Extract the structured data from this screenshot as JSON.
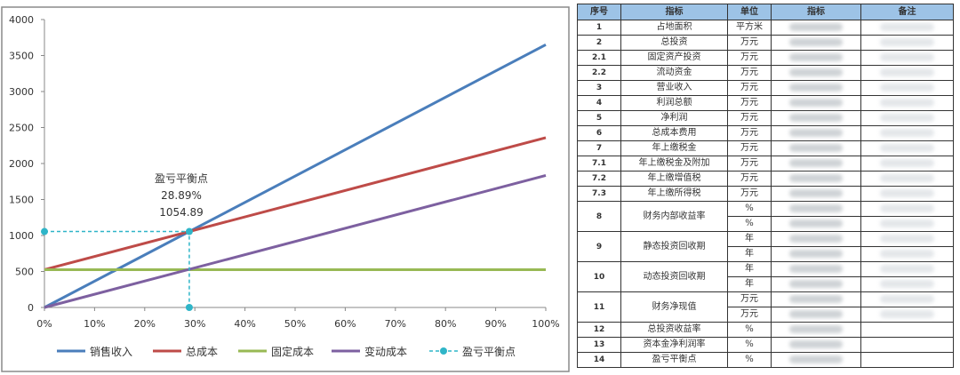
{
  "chart_data": {
    "type": "line",
    "x": [
      0,
      100
    ],
    "xticks": [
      "0%",
      "10%",
      "20%",
      "30%",
      "40%",
      "50%",
      "60%",
      "70%",
      "80%",
      "90%",
      "100%"
    ],
    "yticks": [
      "0",
      "500",
      "1000",
      "1500",
      "2000",
      "2500",
      "3000",
      "3500",
      "4000"
    ],
    "ylim": [
      0,
      4000
    ],
    "xlim": [
      0,
      100
    ],
    "series": [
      {
        "name": "销售收入",
        "color": "#4a7ebb",
        "values": [
          0,
          3651
        ]
      },
      {
        "name": "总成本",
        "color": "#be4b48",
        "values": [
          525,
          2359
        ]
      },
      {
        "name": "固定成本",
        "color": "#98b954",
        "values": [
          525,
          525
        ]
      },
      {
        "name": "变动成本",
        "color": "#7d60a0",
        "values": [
          0,
          1834
        ]
      }
    ],
    "breakeven": {
      "name": "盈亏平衡点",
      "color": "#2fb5c8",
      "x": 28.89,
      "y": 1054.89,
      "label": [
        "盈亏平衡点",
        "28.89%",
        "1054.89"
      ]
    },
    "legend": "bottom"
  },
  "table": {
    "headers": [
      "序号",
      "指标",
      "单位",
      "指标",
      "备注"
    ],
    "rows": [
      {
        "no": "1",
        "name": "占地面积",
        "units": [
          "平方米"
        ]
      },
      {
        "no": "2",
        "name": "总投资",
        "units": [
          "万元"
        ]
      },
      {
        "no": "2.1",
        "name": "固定资产投资",
        "units": [
          "万元"
        ]
      },
      {
        "no": "2.2",
        "name": "流动资金",
        "units": [
          "万元"
        ]
      },
      {
        "no": "3",
        "name": "营业收入",
        "units": [
          "万元"
        ]
      },
      {
        "no": "4",
        "name": "利润总额",
        "units": [
          "万元"
        ]
      },
      {
        "no": "5",
        "name": "净利润",
        "units": [
          "万元"
        ]
      },
      {
        "no": "6",
        "name": "总成本费用",
        "units": [
          "万元"
        ]
      },
      {
        "no": "7",
        "name": "年上缴税金",
        "units": [
          "万元"
        ]
      },
      {
        "no": "7.1",
        "name": "年上缴税金及附加",
        "units": [
          "万元"
        ]
      },
      {
        "no": "7.2",
        "name": "年上缴增值税",
        "units": [
          "万元"
        ]
      },
      {
        "no": "7.3",
        "name": "年上缴所得税",
        "units": [
          "万元"
        ]
      },
      {
        "no": "8",
        "name": "财务内部收益率",
        "units": [
          "%",
          "%"
        ]
      },
      {
        "no": "9",
        "name": "静态投资回收期",
        "units": [
          "年",
          "年"
        ]
      },
      {
        "no": "10",
        "name": "动态投资回收期",
        "units": [
          "年",
          "年"
        ]
      },
      {
        "no": "11",
        "name": "财务净现值",
        "units": [
          "万元",
          "万元"
        ]
      },
      {
        "no": "12",
        "name": "总投资收益率",
        "units": [
          "%"
        ],
        "noremark": true
      },
      {
        "no": "13",
        "name": "资本金净利润率",
        "units": [
          "%"
        ],
        "noremark": true
      },
      {
        "no": "14",
        "name": "盈亏平衡点",
        "units": [
          "%"
        ],
        "noremark": true
      }
    ]
  }
}
